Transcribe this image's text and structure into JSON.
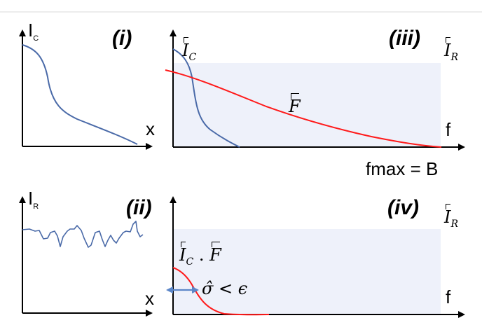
{
  "top_rule_color": "#e6e6e6",
  "colors": {
    "blue_curve": "#4a6aa8",
    "red_curve": "#ff1a1a",
    "band": "#eef1fa",
    "arrow": "#5b86c8",
    "axis": "#000000"
  },
  "panels": {
    "i": {
      "id": "(i)",
      "y_label_main": "I",
      "y_label_sub": "C",
      "x_label": "x"
    },
    "ii": {
      "id": "(ii)",
      "y_label_main": "I",
      "y_label_sub": "R",
      "x_label": "x"
    },
    "iii": {
      "id": "(iii)",
      "ic_hat": "I",
      "ic_sub": "C",
      "ir_hat": "I",
      "ir_sub": "R",
      "f_hat": "F",
      "x_label": "f",
      "fmax_label": "fmax = B"
    },
    "iv": {
      "id": "(iv)",
      "ir_hat": "I",
      "ir_sub": "R",
      "product_left": "I",
      "product_left_sub": "C",
      "product_dot": ".",
      "product_right": "F",
      "sigma_label": "σ̂ < ϵ",
      "x_label": "f"
    }
  }
}
